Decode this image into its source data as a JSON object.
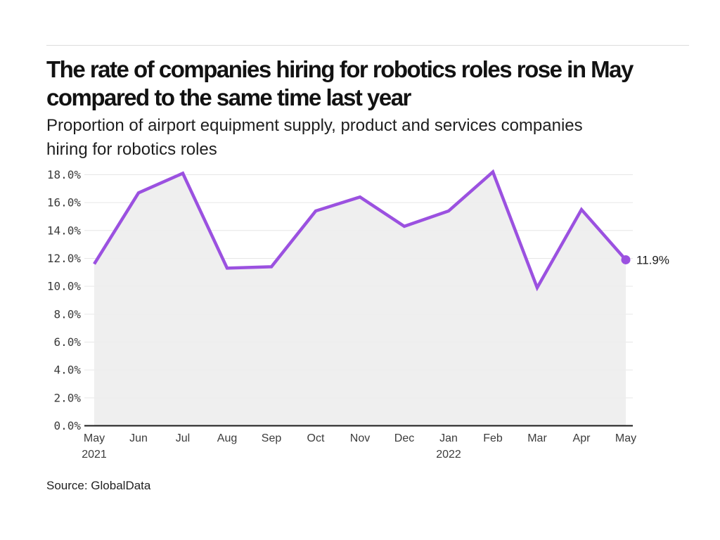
{
  "header": {
    "title": "The rate of companies hiring for robotics roles rose in May\ncompared to the same time last year",
    "subtitle": "Proportion of airport equipment supply, product and services companies\nhiring for robotics roles"
  },
  "footer": {
    "source": "Source: GlobalData"
  },
  "colors": {
    "line": "#9b51e0",
    "area": "rgba(238,238,238,0.92)",
    "grid": "#e6e6e6",
    "axis": "#1a1a1a",
    "tick_text": "#3c3c3c"
  },
  "chart_data": {
    "type": "line",
    "title": "The rate of companies hiring for robotics roles rose in May compared to the same time last year",
    "subtitle": "Proportion of airport equipment supply, product and services companies hiring for robotics roles",
    "categories": [
      "May",
      "Jun",
      "Jul",
      "Aug",
      "Sep",
      "Oct",
      "Nov",
      "Dec",
      "Jan",
      "Feb",
      "Mar",
      "Apr",
      "May"
    ],
    "year_labels": [
      {
        "index": 0,
        "text": "2021"
      },
      {
        "index": 8,
        "text": "2022"
      }
    ],
    "values": [
      11.6,
      16.7,
      18.1,
      11.3,
      11.4,
      15.4,
      16.4,
      14.3,
      15.4,
      18.2,
      9.9,
      15.5,
      11.9
    ],
    "unit": "%",
    "end_label": "11.9%",
    "y_tick_values": [
      0,
      2,
      4,
      6,
      8,
      10,
      12,
      14,
      16,
      18
    ],
    "y_tick_labels": [
      "0.0%",
      "2.0%",
      "4.0%",
      "6.0%",
      "8.0%",
      "10.0%",
      "12.0%",
      "14.0%",
      "16.0%",
      "18.0%"
    ],
    "ylim": [
      0,
      18.5
    ],
    "xlabel": "",
    "ylabel": "",
    "grid": true,
    "legend": false,
    "area_fill": true
  }
}
